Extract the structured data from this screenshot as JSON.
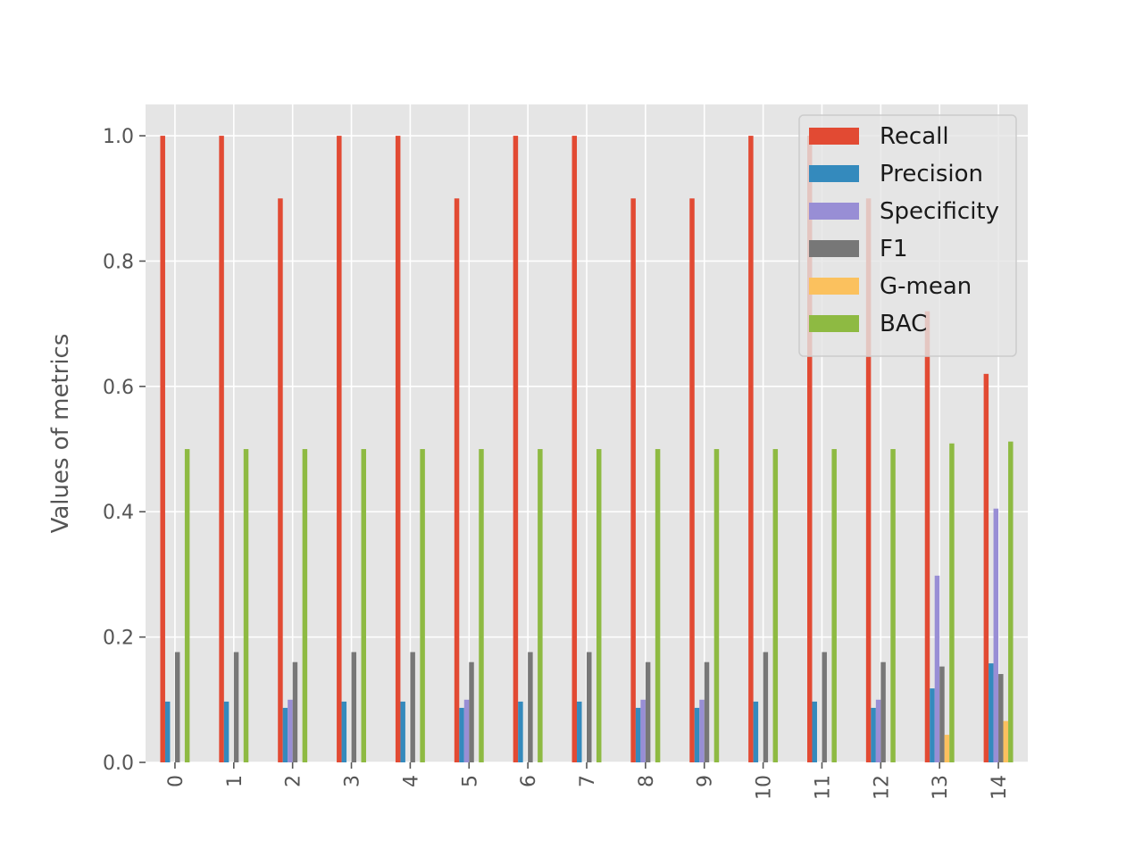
{
  "chart_data": {
    "type": "bar",
    "title": "",
    "xlabel": "",
    "ylabel": "Values of metrics",
    "ylim": [
      0,
      1.05
    ],
    "yticks": [
      "0.0",
      "0.2",
      "0.4",
      "0.6",
      "0.8",
      "1.0"
    ],
    "grid": true,
    "legend_position": "top-right",
    "categories": [
      "0",
      "1",
      "2",
      "3",
      "4",
      "5",
      "6",
      "7",
      "8",
      "9",
      "10",
      "11",
      "12",
      "13",
      "14"
    ],
    "series": [
      {
        "name": "Recall",
        "color": "#E24A33",
        "values": [
          1.0,
          1.0,
          0.9,
          1.0,
          1.0,
          0.9,
          1.0,
          1.0,
          0.9,
          0.9,
          1.0,
          1.0,
          0.9,
          0.72,
          0.62
        ]
      },
      {
        "name": "Precision",
        "color": "#348ABD",
        "values": [
          0.097,
          0.097,
          0.087,
          0.097,
          0.097,
          0.087,
          0.097,
          0.097,
          0.087,
          0.087,
          0.097,
          0.097,
          0.087,
          0.118,
          0.158
        ]
      },
      {
        "name": "Specificity",
        "color": "#988ED5",
        "values": [
          0.0,
          0.0,
          0.1,
          0.0,
          0.0,
          0.1,
          0.0,
          0.0,
          0.1,
          0.1,
          0.0,
          0.0,
          0.1,
          0.298,
          0.405
        ]
      },
      {
        "name": "F1",
        "color": "#777777",
        "values": [
          0.176,
          0.176,
          0.16,
          0.176,
          0.176,
          0.16,
          0.176,
          0.176,
          0.16,
          0.16,
          0.176,
          0.176,
          0.16,
          0.153,
          0.141
        ]
      },
      {
        "name": "G-mean",
        "color": "#FBC15E",
        "values": [
          0.0,
          0.0,
          0.0,
          0.0,
          0.0,
          0.0,
          0.0,
          0.0,
          0.0,
          0.0,
          0.0,
          0.0,
          0.0,
          0.044,
          0.066
        ]
      },
      {
        "name": "BAC",
        "color": "#8EBA42",
        "values": [
          0.5,
          0.5,
          0.5,
          0.5,
          0.5,
          0.5,
          0.5,
          0.5,
          0.5,
          0.5,
          0.5,
          0.5,
          0.5,
          0.509,
          0.512
        ]
      }
    ]
  }
}
